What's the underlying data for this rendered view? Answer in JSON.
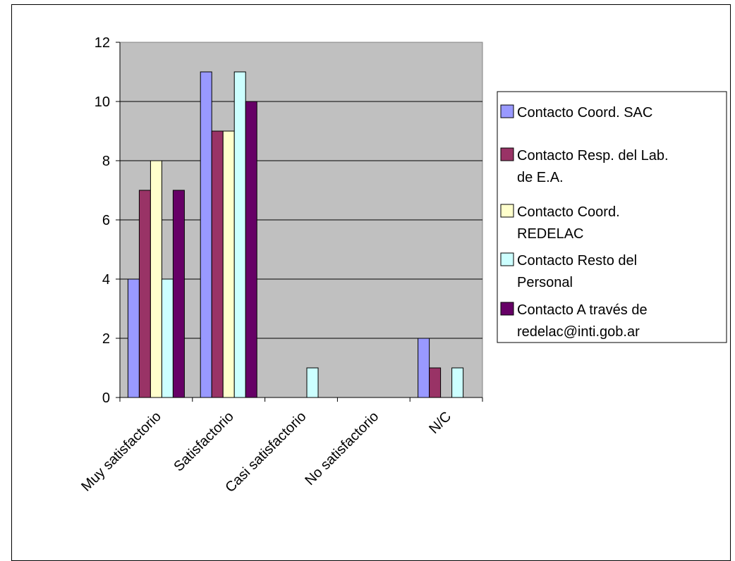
{
  "chart_data": {
    "type": "bar",
    "title": "",
    "xlabel": "",
    "ylabel": "",
    "categories": [
      "Muy satisfactorio",
      "Satisfactorio",
      "Casi satisfactorio",
      "No satisfactorio",
      "N/C"
    ],
    "ylim": [
      0,
      12
    ],
    "yticks": [
      "0",
      "2",
      "4",
      "6",
      "8",
      "10",
      "12"
    ],
    "grid": true,
    "legend_position": "right",
    "plot_background": "#c0c0c0",
    "series": [
      {
        "name": "Contacto Coord. SAC",
        "legend_lines": [
          "Contacto Coord. SAC"
        ],
        "color": "#9999ff",
        "values": [
          4,
          11,
          0,
          0,
          2
        ]
      },
      {
        "name": "Contacto Resp. del Lab. de E.A.",
        "legend_lines": [
          "Contacto Resp. del Lab.",
          "de E.A."
        ],
        "color": "#993366",
        "values": [
          7,
          9,
          0,
          0,
          1
        ]
      },
      {
        "name": "Contacto Coord. REDELAC",
        "legend_lines": [
          "Contacto Coord.",
          "REDELAC"
        ],
        "color": "#ffffcc",
        "values": [
          8,
          9,
          0,
          0,
          0
        ]
      },
      {
        "name": "Contacto Resto del Personal",
        "legend_lines": [
          "Contacto Resto del",
          "Personal"
        ],
        "color": "#ccffff",
        "values": [
          4,
          11,
          1,
          0,
          1
        ]
      },
      {
        "name": "Contacto A través de redelac@inti.gob.ar",
        "legend_lines": [
          "Contacto A través de",
          "redelac@inti.gob.ar"
        ],
        "color": "#660066",
        "values": [
          7,
          10,
          0,
          0,
          0
        ]
      }
    ]
  }
}
